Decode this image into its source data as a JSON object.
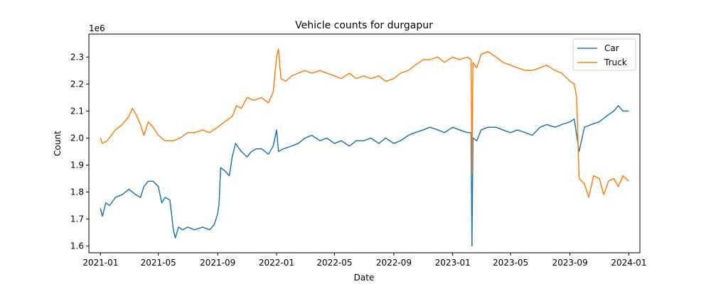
{
  "chart_data": {
    "type": "line",
    "title": "Vehicle counts for durgapur",
    "xlabel": "Date",
    "ylabel": "Count",
    "y_offset_label": "1e6",
    "x_range": [
      "2020-12-08",
      "2024-01-24"
    ],
    "ylim": [
      1.575,
      2.385
    ],
    "x_ticks": [
      "2021-01",
      "2021-05",
      "2021-09",
      "2022-01",
      "2022-05",
      "2022-09",
      "2023-01",
      "2023-05",
      "2023-09",
      "2024-01"
    ],
    "y_ticks": [
      1.6,
      1.7,
      1.8,
      1.9,
      2.0,
      2.1,
      2.2,
      2.3
    ],
    "legend_position": "upper-right",
    "grid": false,
    "series": [
      {
        "name": "Car",
        "color": "#1f77b4",
        "points": [
          [
            "2021-01-01",
            1.74
          ],
          [
            "2021-01-05",
            1.71
          ],
          [
            "2021-01-12",
            1.76
          ],
          [
            "2021-01-20",
            1.75
          ],
          [
            "2021-02-01",
            1.78
          ],
          [
            "2021-02-15",
            1.79
          ],
          [
            "2021-03-01",
            1.81
          ],
          [
            "2021-03-15",
            1.79
          ],
          [
            "2021-03-25",
            1.78
          ],
          [
            "2021-04-01",
            1.82
          ],
          [
            "2021-04-10",
            1.84
          ],
          [
            "2021-04-20",
            1.84
          ],
          [
            "2021-05-01",
            1.82
          ],
          [
            "2021-05-08",
            1.76
          ],
          [
            "2021-05-15",
            1.78
          ],
          [
            "2021-05-25",
            1.77
          ],
          [
            "2021-06-01",
            1.66
          ],
          [
            "2021-06-05",
            1.63
          ],
          [
            "2021-06-12",
            1.67
          ],
          [
            "2021-06-20",
            1.66
          ],
          [
            "2021-07-01",
            1.67
          ],
          [
            "2021-07-15",
            1.66
          ],
          [
            "2021-08-01",
            1.67
          ],
          [
            "2021-08-15",
            1.66
          ],
          [
            "2021-08-25",
            1.68
          ],
          [
            "2021-09-01",
            1.72
          ],
          [
            "2021-09-04",
            1.76
          ],
          [
            "2021-09-07",
            1.89
          ],
          [
            "2021-09-15",
            1.88
          ],
          [
            "2021-09-25",
            1.86
          ],
          [
            "2021-10-01",
            1.93
          ],
          [
            "2021-10-08",
            1.98
          ],
          [
            "2021-10-20",
            1.95
          ],
          [
            "2021-11-01",
            1.93
          ],
          [
            "2021-11-10",
            1.95
          ],
          [
            "2021-11-20",
            1.96
          ],
          [
            "2021-12-01",
            1.96
          ],
          [
            "2021-12-15",
            1.94
          ],
          [
            "2021-12-25",
            1.97
          ],
          [
            "2022-01-01",
            2.03
          ],
          [
            "2022-01-05",
            1.95
          ],
          [
            "2022-01-15",
            1.96
          ],
          [
            "2022-02-01",
            1.97
          ],
          [
            "2022-02-15",
            1.98
          ],
          [
            "2022-03-01",
            2.0
          ],
          [
            "2022-03-15",
            2.01
          ],
          [
            "2022-04-01",
            1.99
          ],
          [
            "2022-04-15",
            2.0
          ],
          [
            "2022-05-01",
            1.98
          ],
          [
            "2022-05-15",
            1.99
          ],
          [
            "2022-06-01",
            1.97
          ],
          [
            "2022-06-15",
            1.99
          ],
          [
            "2022-07-01",
            1.99
          ],
          [
            "2022-07-15",
            2.0
          ],
          [
            "2022-08-01",
            1.98
          ],
          [
            "2022-08-15",
            2.0
          ],
          [
            "2022-09-01",
            1.98
          ],
          [
            "2022-09-15",
            1.99
          ],
          [
            "2022-10-01",
            2.01
          ],
          [
            "2022-10-15",
            2.02
          ],
          [
            "2022-11-01",
            2.03
          ],
          [
            "2022-11-15",
            2.04
          ],
          [
            "2022-12-01",
            2.03
          ],
          [
            "2022-12-15",
            2.02
          ],
          [
            "2023-01-01",
            2.04
          ],
          [
            "2023-01-15",
            2.03
          ],
          [
            "2023-02-01",
            2.02
          ],
          [
            "2023-02-08",
            2.02
          ],
          [
            "2023-02-10",
            1.6
          ],
          [
            "2023-02-12",
            2.0
          ],
          [
            "2023-02-20",
            1.99
          ],
          [
            "2023-03-01",
            2.03
          ],
          [
            "2023-03-15",
            2.04
          ],
          [
            "2023-04-01",
            2.04
          ],
          [
            "2023-04-15",
            2.03
          ],
          [
            "2023-05-01",
            2.02
          ],
          [
            "2023-05-15",
            2.03
          ],
          [
            "2023-06-01",
            2.02
          ],
          [
            "2023-06-15",
            2.01
          ],
          [
            "2023-07-01",
            2.04
          ],
          [
            "2023-07-15",
            2.05
          ],
          [
            "2023-08-01",
            2.04
          ],
          [
            "2023-08-15",
            2.05
          ],
          [
            "2023-09-01",
            2.06
          ],
          [
            "2023-09-10",
            2.07
          ],
          [
            "2023-09-20",
            1.95
          ],
          [
            "2023-10-01",
            2.04
          ],
          [
            "2023-10-15",
            2.05
          ],
          [
            "2023-11-01",
            2.06
          ],
          [
            "2023-11-15",
            2.08
          ],
          [
            "2023-12-01",
            2.1
          ],
          [
            "2023-12-10",
            2.12
          ],
          [
            "2023-12-20",
            2.1
          ],
          [
            "2024-01-01",
            2.1
          ]
        ]
      },
      {
        "name": "Truck",
        "color": "#ff7f0e",
        "points": [
          [
            "2021-01-01",
            2.0
          ],
          [
            "2021-01-05",
            1.98
          ],
          [
            "2021-01-15",
            1.99
          ],
          [
            "2021-02-01",
            2.03
          ],
          [
            "2021-02-15",
            2.05
          ],
          [
            "2021-03-01",
            2.08
          ],
          [
            "2021-03-08",
            2.11
          ],
          [
            "2021-03-15",
            2.09
          ],
          [
            "2021-03-25",
            2.05
          ],
          [
            "2021-04-01",
            2.01
          ],
          [
            "2021-04-10",
            2.06
          ],
          [
            "2021-04-20",
            2.04
          ],
          [
            "2021-05-01",
            2.01
          ],
          [
            "2021-05-15",
            1.99
          ],
          [
            "2021-06-01",
            1.99
          ],
          [
            "2021-06-15",
            2.0
          ],
          [
            "2021-07-01",
            2.02
          ],
          [
            "2021-07-15",
            2.02
          ],
          [
            "2021-08-01",
            2.03
          ],
          [
            "2021-08-15",
            2.02
          ],
          [
            "2021-09-01",
            2.04
          ],
          [
            "2021-09-15",
            2.06
          ],
          [
            "2021-10-01",
            2.08
          ],
          [
            "2021-10-10",
            2.12
          ],
          [
            "2021-10-20",
            2.11
          ],
          [
            "2021-11-01",
            2.15
          ],
          [
            "2021-11-15",
            2.14
          ],
          [
            "2021-12-01",
            2.15
          ],
          [
            "2021-12-15",
            2.13
          ],
          [
            "2021-12-25",
            2.17
          ],
          [
            "2022-01-01",
            2.3
          ],
          [
            "2022-01-05",
            2.33
          ],
          [
            "2022-01-10",
            2.22
          ],
          [
            "2022-01-20",
            2.21
          ],
          [
            "2022-02-01",
            2.23
          ],
          [
            "2022-02-15",
            2.24
          ],
          [
            "2022-03-01",
            2.25
          ],
          [
            "2022-03-15",
            2.24
          ],
          [
            "2022-04-01",
            2.25
          ],
          [
            "2022-04-15",
            2.24
          ],
          [
            "2022-05-01",
            2.23
          ],
          [
            "2022-05-15",
            2.22
          ],
          [
            "2022-06-01",
            2.24
          ],
          [
            "2022-06-15",
            2.22
          ],
          [
            "2022-07-01",
            2.23
          ],
          [
            "2022-07-15",
            2.22
          ],
          [
            "2022-08-01",
            2.23
          ],
          [
            "2022-08-15",
            2.21
          ],
          [
            "2022-09-01",
            2.22
          ],
          [
            "2022-09-15",
            2.24
          ],
          [
            "2022-10-01",
            2.25
          ],
          [
            "2022-10-15",
            2.27
          ],
          [
            "2022-11-01",
            2.29
          ],
          [
            "2022-11-15",
            2.29
          ],
          [
            "2022-12-01",
            2.3
          ],
          [
            "2022-12-15",
            2.28
          ],
          [
            "2023-01-01",
            2.3
          ],
          [
            "2023-01-15",
            2.29
          ],
          [
            "2023-02-01",
            2.3
          ],
          [
            "2023-02-08",
            2.29
          ],
          [
            "2023-02-10",
            1.87
          ],
          [
            "2023-02-12",
            2.28
          ],
          [
            "2023-02-20",
            2.26
          ],
          [
            "2023-03-01",
            2.31
          ],
          [
            "2023-03-15",
            2.32
          ],
          [
            "2023-04-01",
            2.3
          ],
          [
            "2023-04-15",
            2.28
          ],
          [
            "2023-05-01",
            2.27
          ],
          [
            "2023-05-15",
            2.26
          ],
          [
            "2023-06-01",
            2.25
          ],
          [
            "2023-06-15",
            2.25
          ],
          [
            "2023-07-01",
            2.26
          ],
          [
            "2023-07-15",
            2.27
          ],
          [
            "2023-08-01",
            2.25
          ],
          [
            "2023-08-15",
            2.24
          ],
          [
            "2023-09-01",
            2.21
          ],
          [
            "2023-09-10",
            2.2
          ],
          [
            "2023-09-15",
            2.15
          ],
          [
            "2023-09-20",
            1.85
          ],
          [
            "2023-10-01",
            1.83
          ],
          [
            "2023-10-10",
            1.78
          ],
          [
            "2023-10-20",
            1.86
          ],
          [
            "2023-11-01",
            1.85
          ],
          [
            "2023-11-10",
            1.79
          ],
          [
            "2023-11-20",
            1.84
          ],
          [
            "2023-12-01",
            1.85
          ],
          [
            "2023-12-10",
            1.82
          ],
          [
            "2023-12-20",
            1.86
          ],
          [
            "2024-01-01",
            1.84
          ]
        ]
      }
    ]
  }
}
